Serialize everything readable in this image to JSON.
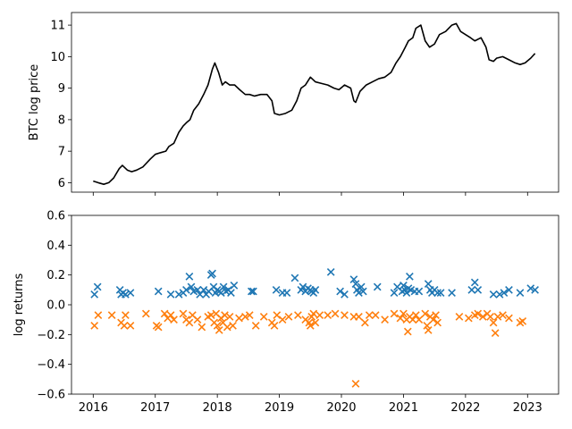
{
  "chart_data": [
    {
      "type": "line",
      "title": "",
      "xlabel": "",
      "ylabel": "BTC log price",
      "xlim": [
        2015.65,
        2023.5
      ],
      "ylim": [
        5.7,
        11.4
      ],
      "yticks": [
        6,
        7,
        8,
        9,
        10,
        11
      ],
      "grid": false,
      "series": [
        {
          "color": "#000000",
          "x": [
            2016.0,
            2016.08,
            2016.17,
            2016.25,
            2016.33,
            2016.42,
            2016.47,
            2016.55,
            2016.62,
            2016.7,
            2016.8,
            2016.92,
            2017.0,
            2017.08,
            2017.17,
            2017.22,
            2017.3,
            2017.38,
            2017.45,
            2017.5,
            2017.56,
            2017.62,
            2017.7,
            2017.78,
            2017.85,
            2017.92,
            2017.96,
            2018.02,
            2018.08,
            2018.13,
            2018.2,
            2018.28,
            2018.36,
            2018.45,
            2018.52,
            2018.6,
            2018.7,
            2018.8,
            2018.88,
            2018.92,
            2019.0,
            2019.1,
            2019.2,
            2019.28,
            2019.35,
            2019.42,
            2019.5,
            2019.58,
            2019.68,
            2019.78,
            2019.88,
            2019.96,
            2020.05,
            2020.15,
            2020.2,
            2020.23,
            2020.3,
            2020.4,
            2020.5,
            2020.6,
            2020.7,
            2020.8,
            2020.88,
            2020.95,
            2021.03,
            2021.08,
            2021.15,
            2021.2,
            2021.28,
            2021.35,
            2021.42,
            2021.5,
            2021.58,
            2021.68,
            2021.78,
            2021.85,
            2021.92,
            2022.0,
            2022.08,
            2022.15,
            2022.25,
            2022.33,
            2022.38,
            2022.45,
            2022.5,
            2022.6,
            2022.7,
            2022.8,
            2022.88,
            2022.96,
            2023.05,
            2023.12
          ],
          "y": [
            6.05,
            6.0,
            5.95,
            6.0,
            6.15,
            6.45,
            6.55,
            6.4,
            6.35,
            6.4,
            6.5,
            6.75,
            6.9,
            6.95,
            7.0,
            7.15,
            7.25,
            7.6,
            7.8,
            7.9,
            8.0,
            8.3,
            8.5,
            8.8,
            9.1,
            9.6,
            9.8,
            9.5,
            9.1,
            9.2,
            9.1,
            9.1,
            8.95,
            8.8,
            8.8,
            8.75,
            8.8,
            8.8,
            8.6,
            8.2,
            8.15,
            8.2,
            8.3,
            8.6,
            9.0,
            9.1,
            9.35,
            9.2,
            9.15,
            9.1,
            9.0,
            8.95,
            9.1,
            9.0,
            8.6,
            8.55,
            8.9,
            9.1,
            9.2,
            9.3,
            9.35,
            9.5,
            9.8,
            10.0,
            10.3,
            10.5,
            10.6,
            10.9,
            11.0,
            10.5,
            10.3,
            10.4,
            10.7,
            10.8,
            11.0,
            11.05,
            10.8,
            10.7,
            10.6,
            10.5,
            10.6,
            10.3,
            9.9,
            9.85,
            9.95,
            10.0,
            9.9,
            9.8,
            9.75,
            9.8,
            9.95,
            10.1
          ]
        }
      ]
    },
    {
      "type": "scatter",
      "title": "",
      "xlabel": "",
      "ylabel": "log returns",
      "xlim": [
        2015.65,
        2023.5
      ],
      "ylim": [
        -0.6,
        0.6
      ],
      "yticks": [
        -0.6,
        -0.4,
        -0.2,
        0.0,
        0.2,
        0.4,
        0.6
      ],
      "ytick_labels": [
        "−0.6",
        "−0.4",
        "−0.2",
        "0.0",
        "0.2",
        "0.4",
        "0.6"
      ],
      "xticks": [
        2016,
        2017,
        2018,
        2019,
        2020,
        2021,
        2022,
        2023
      ],
      "xtick_labels": [
        "2016",
        "2017",
        "2018",
        "2019",
        "2020",
        "2021",
        "2022",
        "2023"
      ],
      "marker": "x",
      "grid": false,
      "series": [
        {
          "color": "#1f77b4",
          "points": [
            [
              2016.02,
              0.07
            ],
            [
              2016.07,
              0.12
            ],
            [
              2016.43,
              0.1
            ],
            [
              2016.45,
              0.07
            ],
            [
              2016.48,
              0.08
            ],
            [
              2016.52,
              0.07
            ],
            [
              2016.6,
              0.08
            ],
            [
              2017.05,
              0.09
            ],
            [
              2017.25,
              0.07
            ],
            [
              2017.38,
              0.07
            ],
            [
              2017.45,
              0.08
            ],
            [
              2017.5,
              0.1
            ],
            [
              2017.55,
              0.19
            ],
            [
              2017.58,
              0.12
            ],
            [
              2017.62,
              0.09
            ],
            [
              2017.68,
              0.1
            ],
            [
              2017.72,
              0.07
            ],
            [
              2017.78,
              0.1
            ],
            [
              2017.82,
              0.07
            ],
            [
              2017.86,
              0.09
            ],
            [
              2017.9,
              0.2
            ],
            [
              2017.92,
              0.21
            ],
            [
              2017.94,
              0.12
            ],
            [
              2017.97,
              0.08
            ],
            [
              2018.0,
              0.1
            ],
            [
              2018.03,
              0.09
            ],
            [
              2018.06,
              0.08
            ],
            [
              2018.1,
              0.12
            ],
            [
              2018.14,
              0.09
            ],
            [
              2018.18,
              0.1
            ],
            [
              2018.22,
              0.08
            ],
            [
              2018.27,
              0.13
            ],
            [
              2018.55,
              0.09
            ],
            [
              2018.58,
              0.09
            ],
            [
              2018.95,
              0.1
            ],
            [
              2019.05,
              0.08
            ],
            [
              2019.12,
              0.08
            ],
            [
              2019.25,
              0.18
            ],
            [
              2019.35,
              0.1
            ],
            [
              2019.38,
              0.12
            ],
            [
              2019.42,
              0.09
            ],
            [
              2019.46,
              0.11
            ],
            [
              2019.5,
              0.1
            ],
            [
              2019.52,
              0.09
            ],
            [
              2019.55,
              0.08
            ],
            [
              2019.58,
              0.1
            ],
            [
              2019.83,
              0.22
            ],
            [
              2019.98,
              0.09
            ],
            [
              2020.05,
              0.07
            ],
            [
              2020.2,
              0.17
            ],
            [
              2020.23,
              0.14
            ],
            [
              2020.25,
              0.1
            ],
            [
              2020.28,
              0.08
            ],
            [
              2020.32,
              0.12
            ],
            [
              2020.35,
              0.09
            ],
            [
              2020.58,
              0.12
            ],
            [
              2020.85,
              0.08
            ],
            [
              2020.9,
              0.12
            ],
            [
              2020.98,
              0.09
            ],
            [
              2021.0,
              0.13
            ],
            [
              2021.02,
              0.1
            ],
            [
              2021.05,
              0.08
            ],
            [
              2021.08,
              0.11
            ],
            [
              2021.1,
              0.19
            ],
            [
              2021.12,
              0.1
            ],
            [
              2021.18,
              0.09
            ],
            [
              2021.25,
              0.09
            ],
            [
              2021.4,
              0.14
            ],
            [
              2021.43,
              0.1
            ],
            [
              2021.46,
              0.08
            ],
            [
              2021.5,
              0.1
            ],
            [
              2021.55,
              0.08
            ],
            [
              2021.6,
              0.08
            ],
            [
              2021.78,
              0.08
            ],
            [
              2022.1,
              0.1
            ],
            [
              2022.15,
              0.15
            ],
            [
              2022.2,
              0.1
            ],
            [
              2022.45,
              0.07
            ],
            [
              2022.55,
              0.07
            ],
            [
              2022.62,
              0.08
            ],
            [
              2022.7,
              0.1
            ],
            [
              2022.88,
              0.08
            ],
            [
              2023.05,
              0.11
            ],
            [
              2023.12,
              0.1
            ]
          ]
        },
        {
          "color": "#ff7f0e",
          "points": [
            [
              2016.02,
              -0.14
            ],
            [
              2016.08,
              -0.07
            ],
            [
              2016.3,
              -0.07
            ],
            [
              2016.45,
              -0.12
            ],
            [
              2016.5,
              -0.14
            ],
            [
              2016.52,
              -0.07
            ],
            [
              2016.6,
              -0.14
            ],
            [
              2016.85,
              -0.06
            ],
            [
              2017.02,
              -0.14
            ],
            [
              2017.05,
              -0.15
            ],
            [
              2017.15,
              -0.06
            ],
            [
              2017.2,
              -0.09
            ],
            [
              2017.25,
              -0.07
            ],
            [
              2017.3,
              -0.1
            ],
            [
              2017.45,
              -0.06
            ],
            [
              2017.5,
              -0.1
            ],
            [
              2017.55,
              -0.12
            ],
            [
              2017.6,
              -0.07
            ],
            [
              2017.68,
              -0.1
            ],
            [
              2017.75,
              -0.15
            ],
            [
              2017.85,
              -0.08
            ],
            [
              2017.9,
              -0.07
            ],
            [
              2017.95,
              -0.12
            ],
            [
              2017.98,
              -0.06
            ],
            [
              2018.0,
              -0.14
            ],
            [
              2018.03,
              -0.17
            ],
            [
              2018.06,
              -0.09
            ],
            [
              2018.09,
              -0.12
            ],
            [
              2018.12,
              -0.07
            ],
            [
              2018.16,
              -0.15
            ],
            [
              2018.2,
              -0.08
            ],
            [
              2018.25,
              -0.14
            ],
            [
              2018.35,
              -0.09
            ],
            [
              2018.45,
              -0.08
            ],
            [
              2018.52,
              -0.07
            ],
            [
              2018.62,
              -0.14
            ],
            [
              2018.75,
              -0.08
            ],
            [
              2018.88,
              -0.12
            ],
            [
              2018.92,
              -0.14
            ],
            [
              2018.96,
              -0.07
            ],
            [
              2019.05,
              -0.1
            ],
            [
              2019.15,
              -0.08
            ],
            [
              2019.3,
              -0.07
            ],
            [
              2019.42,
              -0.1
            ],
            [
              2019.48,
              -0.12
            ],
            [
              2019.5,
              -0.14
            ],
            [
              2019.52,
              -0.08
            ],
            [
              2019.55,
              -0.06
            ],
            [
              2019.58,
              -0.12
            ],
            [
              2019.65,
              -0.07
            ],
            [
              2019.78,
              -0.07
            ],
            [
              2019.9,
              -0.06
            ],
            [
              2020.05,
              -0.07
            ],
            [
              2020.2,
              -0.08
            ],
            [
              2020.23,
              -0.53
            ],
            [
              2020.28,
              -0.08
            ],
            [
              2020.38,
              -0.12
            ],
            [
              2020.45,
              -0.07
            ],
            [
              2020.55,
              -0.07
            ],
            [
              2020.7,
              -0.1
            ],
            [
              2020.85,
              -0.06
            ],
            [
              2020.95,
              -0.09
            ],
            [
              2021.0,
              -0.06
            ],
            [
              2021.05,
              -0.1
            ],
            [
              2021.07,
              -0.18
            ],
            [
              2021.1,
              -0.08
            ],
            [
              2021.15,
              -0.1
            ],
            [
              2021.2,
              -0.07
            ],
            [
              2021.25,
              -0.1
            ],
            [
              2021.35,
              -0.06
            ],
            [
              2021.38,
              -0.14
            ],
            [
              2021.4,
              -0.17
            ],
            [
              2021.43,
              -0.08
            ],
            [
              2021.48,
              -0.1
            ],
            [
              2021.52,
              -0.07
            ],
            [
              2021.55,
              -0.12
            ],
            [
              2021.9,
              -0.08
            ],
            [
              2022.05,
              -0.09
            ],
            [
              2022.15,
              -0.07
            ],
            [
              2022.2,
              -0.06
            ],
            [
              2022.28,
              -0.08
            ],
            [
              2022.35,
              -0.06
            ],
            [
              2022.4,
              -0.08
            ],
            [
              2022.45,
              -0.12
            ],
            [
              2022.48,
              -0.19
            ],
            [
              2022.52,
              -0.08
            ],
            [
              2022.6,
              -0.07
            ],
            [
              2022.7,
              -0.09
            ],
            [
              2022.88,
              -0.12
            ],
            [
              2022.92,
              -0.11
            ]
          ]
        }
      ]
    }
  ]
}
